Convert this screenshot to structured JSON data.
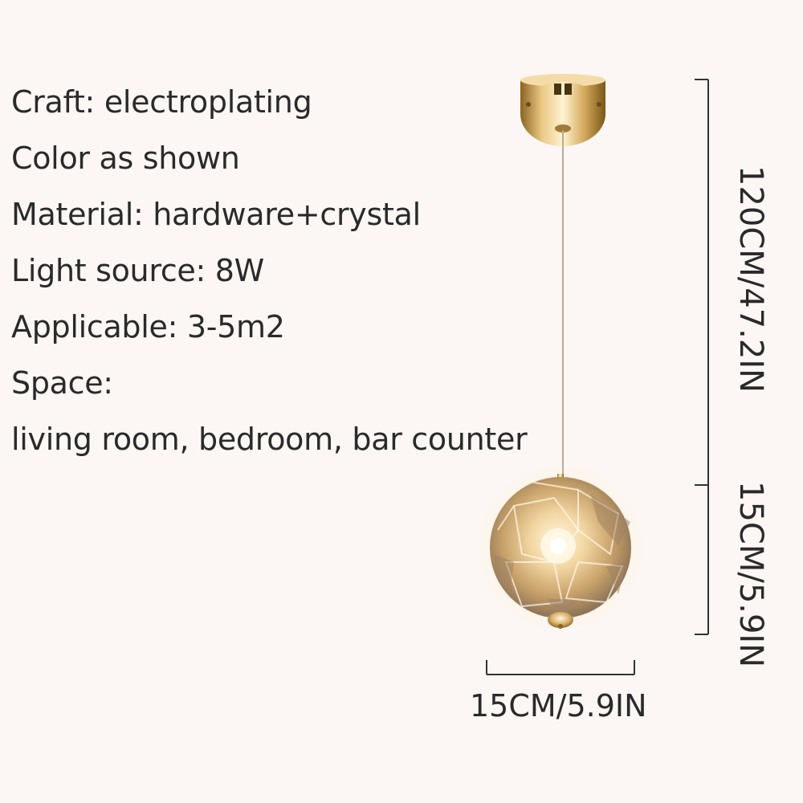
{
  "specs": [
    "Craft: electroplating",
    "Color as shown",
    "Material: hardware+crystal",
    "Light source: 8W",
    "Applicable: 3-5m2",
    "Space:",
    "living room, bedroom, bar counter"
  ],
  "dimensions": {
    "cord_length": "120CM/47.2IN",
    "globe_height": "15CM/5.9IN",
    "globe_width": "15CM/5.9IN"
  },
  "colors": {
    "background": "#fcf7f4",
    "gold": "#c9a25a",
    "text": "#2a2a2a"
  }
}
